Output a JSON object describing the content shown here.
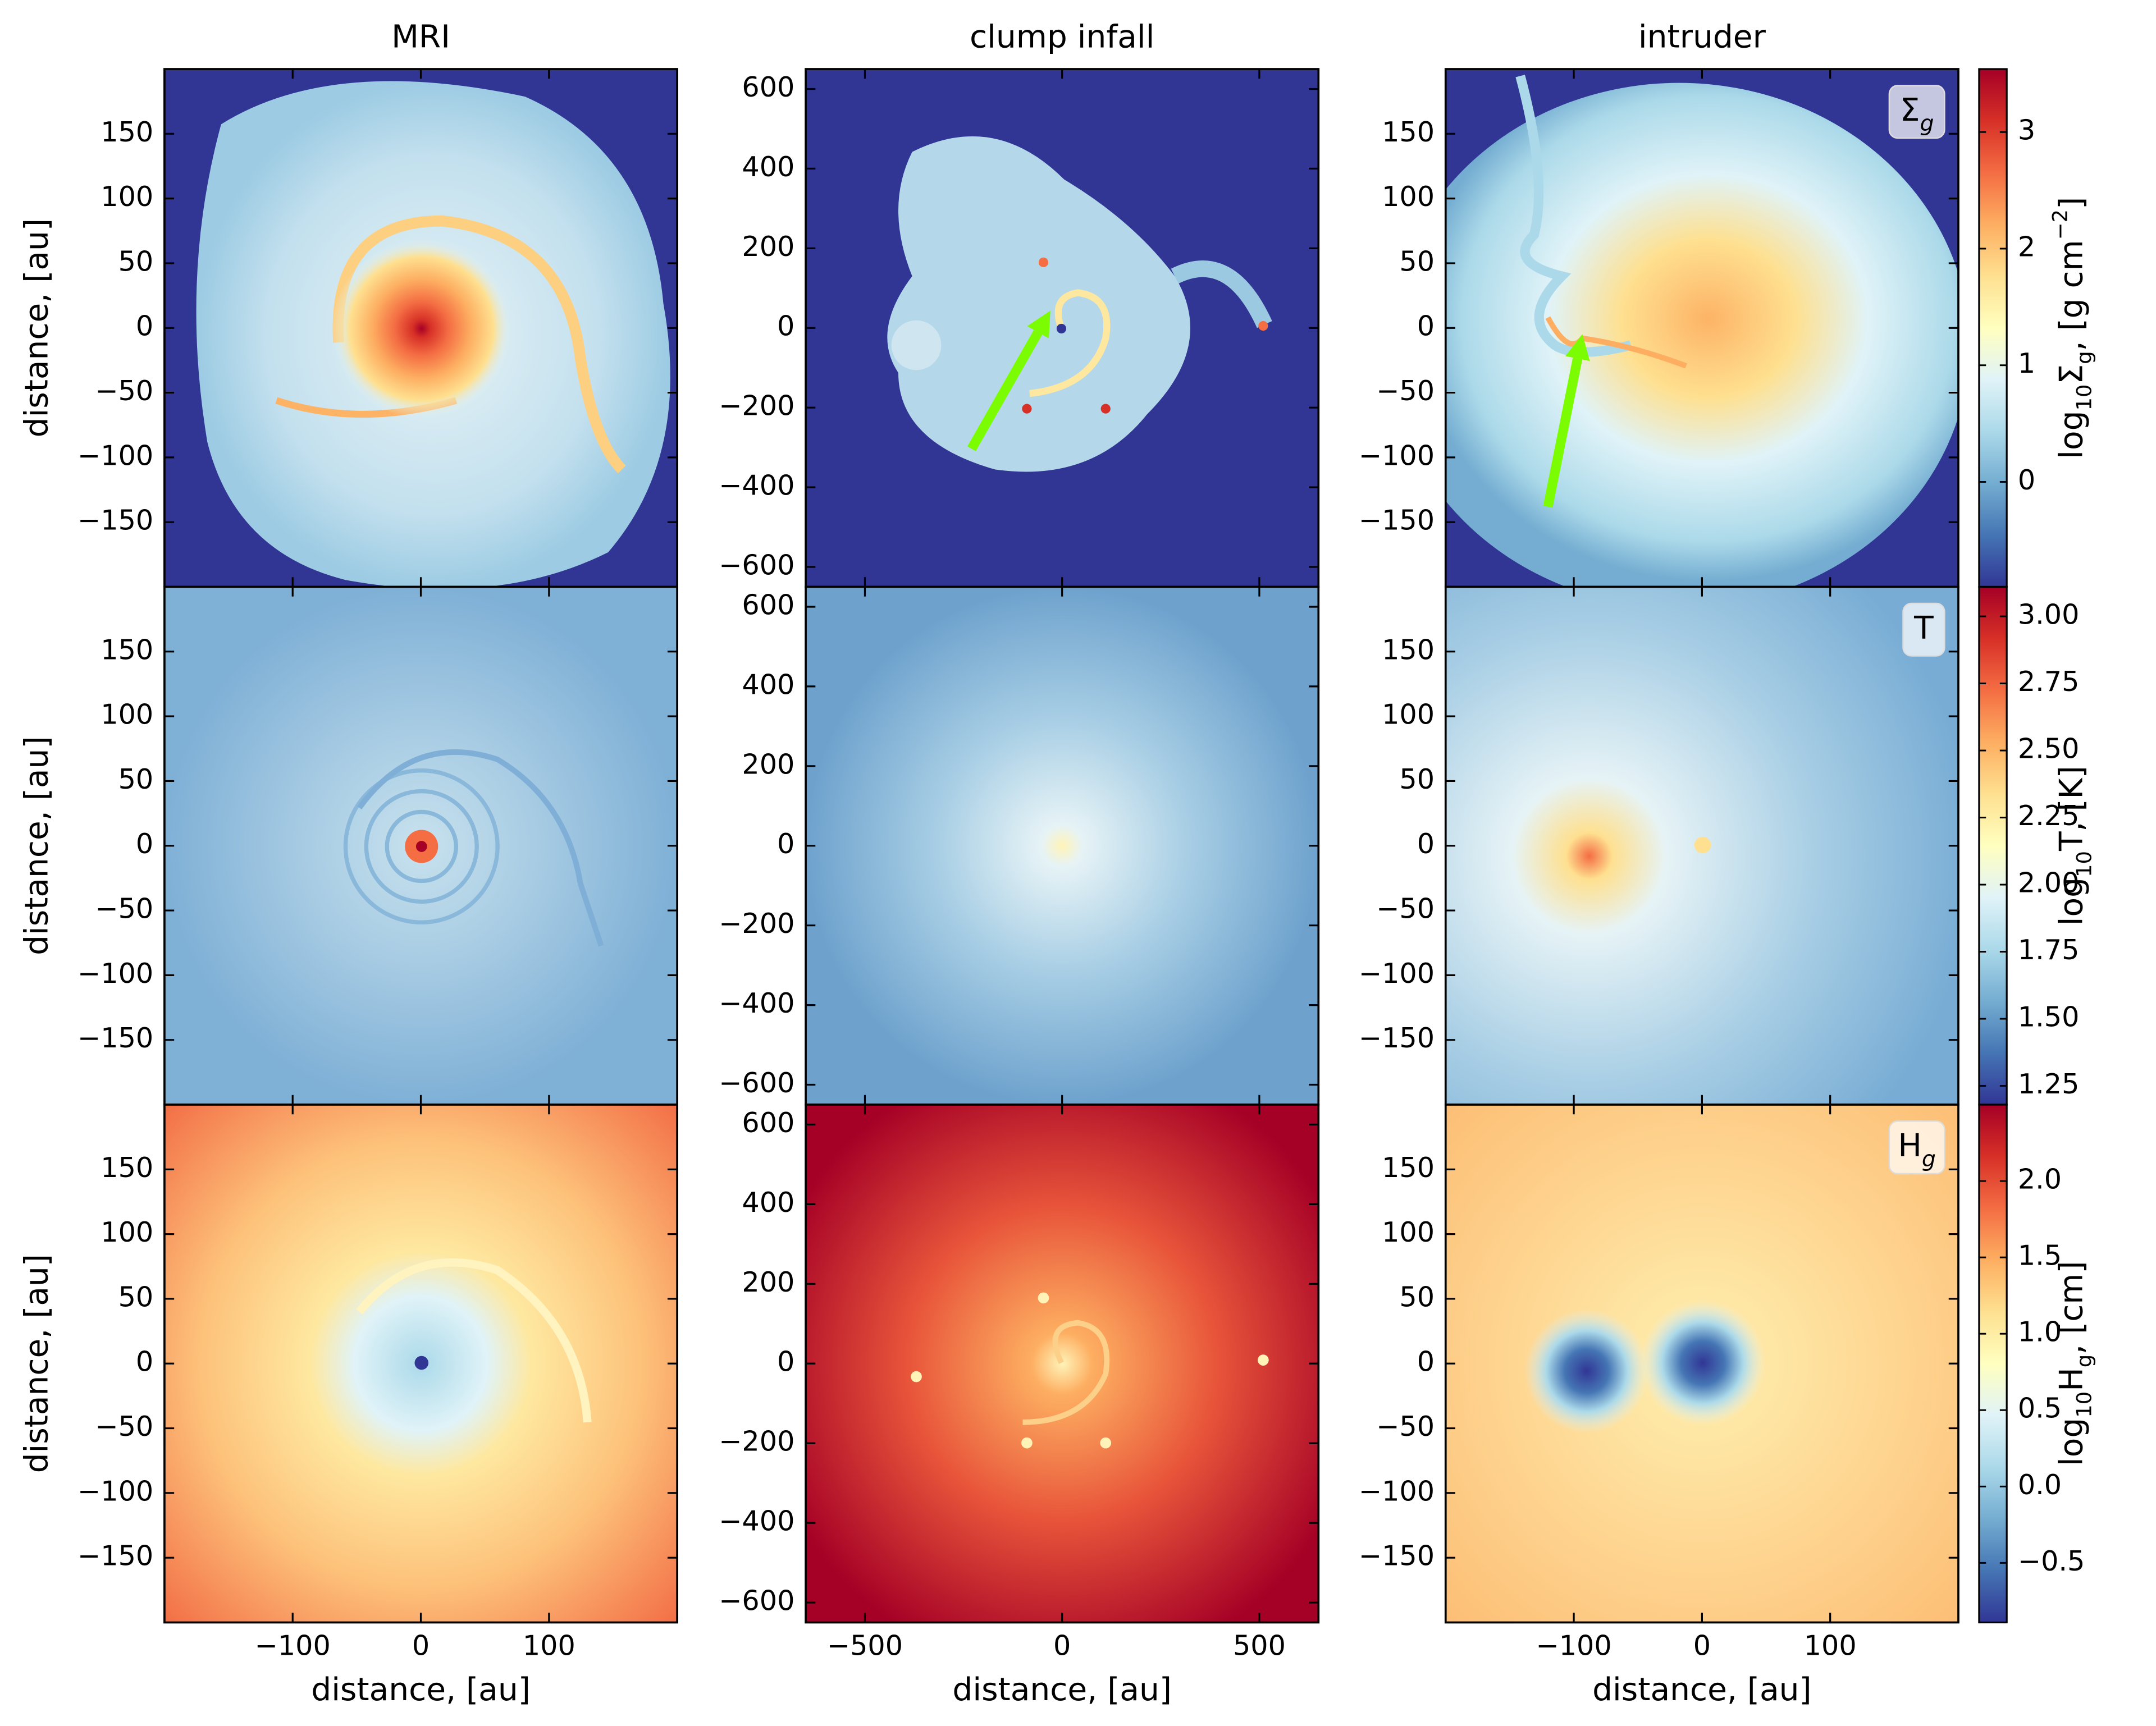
{
  "chart_data": [
    {
      "type": "heatmap",
      "title": "MRI",
      "ylabel": "distance, [au]",
      "xlim": [
        -200,
        200
      ],
      "ylim": [
        -200,
        200
      ],
      "xticks": [
        -100,
        0,
        100
      ],
      "yticks": [
        {
          "value": -150,
          "label": "−150"
        },
        {
          "value": -100,
          "label": "−100"
        },
        {
          "value": -50,
          "label": "−50"
        },
        0,
        50,
        100,
        150
      ]
    },
    {
      "type": "heatmap",
      "title": "clump infall",
      "xlim": [
        -650,
        650
      ],
      "ylim": [
        -650,
        650
      ],
      "xticks": [
        -500,
        0,
        500
      ],
      "yticks": [
        {
          "value": -600,
          "label": "−600"
        },
        {
          "value": -400,
          "label": "−400"
        },
        {
          "value": -200,
          "label": "−200"
        },
        0,
        200,
        400,
        600
      ]
    },
    {
      "type": "heatmap",
      "title": "intruder",
      "annotation": {
        "base": "Σ",
        "sub": "g"
      },
      "xlim": [
        -200,
        200
      ],
      "ylim": [
        -200,
        200
      ],
      "xticks": [
        -100,
        0,
        100
      ],
      "yticks": [
        {
          "value": -150,
          "label": "−150"
        },
        {
          "value": -100,
          "label": "−100"
        },
        {
          "value": -50,
          "label": "−50"
        },
        0,
        50,
        100,
        150
      ]
    },
    {
      "type": "heatmap",
      "ylabel": "distance, [au]",
      "xlim": [
        -200,
        200
      ],
      "ylim": [
        -200,
        200
      ],
      "xticks": [
        -100,
        0,
        100
      ],
      "yticks": [
        {
          "value": -150,
          "label": "−150"
        },
        {
          "value": -100,
          "label": "−100"
        },
        {
          "value": -50,
          "label": "−50"
        },
        0,
        50,
        100,
        150
      ]
    },
    {
      "type": "heatmap",
      "xlim": [
        -650,
        650
      ],
      "ylim": [
        -650,
        650
      ],
      "xticks": [
        -500,
        0,
        500
      ],
      "yticks": [
        {
          "value": -600,
          "label": "−600"
        },
        {
          "value": -400,
          "label": "−400"
        },
        {
          "value": -200,
          "label": "−200"
        },
        0,
        200,
        400,
        600
      ]
    },
    {
      "type": "heatmap",
      "annotation": {
        "base": "T"
      },
      "xlim": [
        -200,
        200
      ],
      "ylim": [
        -200,
        200
      ],
      "xticks": [
        -100,
        0,
        100
      ],
      "yticks": [
        {
          "value": -150,
          "label": "−150"
        },
        {
          "value": -100,
          "label": "−100"
        },
        {
          "value": -50,
          "label": "−50"
        },
        0,
        50,
        100,
        150
      ]
    },
    {
      "type": "heatmap",
      "ylabel": "distance, [au]",
      "xlabel": "distance, [au]",
      "xlim": [
        -200,
        200
      ],
      "ylim": [
        -200,
        200
      ],
      "xticks": [
        {
          "value": -100,
          "label": "−100"
        },
        0,
        100
      ],
      "yticks": [
        {
          "value": -150,
          "label": "−150"
        },
        {
          "value": -100,
          "label": "−100"
        },
        {
          "value": -50,
          "label": "−50"
        },
        0,
        50,
        100,
        150
      ]
    },
    {
      "type": "heatmap",
      "xlabel": "distance, [au]",
      "xlim": [
        -650,
        650
      ],
      "ylim": [
        -650,
        650
      ],
      "xticks": [
        {
          "value": -500,
          "label": "−500"
        },
        0,
        500
      ],
      "yticks": [
        {
          "value": -600,
          "label": "−600"
        },
        {
          "value": -400,
          "label": "−400"
        },
        {
          "value": -200,
          "label": "−200"
        },
        0,
        200,
        400,
        600
      ]
    },
    {
      "type": "heatmap",
      "xlabel": "distance, [au]",
      "annotation": {
        "base": "H",
        "sub": "g"
      },
      "xlim": [
        -200,
        200
      ],
      "ylim": [
        -200,
        200
      ],
      "xticks": [
        {
          "value": -100,
          "label": "−100"
        },
        0,
        100
      ],
      "yticks": [
        {
          "value": -150,
          "label": "−150"
        },
        {
          "value": -100,
          "label": "−100"
        },
        {
          "value": -50,
          "label": "−50"
        },
        0,
        50,
        100,
        150
      ]
    },
    {
      "type": "colorbar",
      "label": [
        {
          "text": "log"
        },
        {
          "text": "10",
          "sub": true
        },
        {
          "text": "Σ"
        },
        {
          "text": "g",
          "sub": true
        },
        {
          "text": ", [g cm"
        },
        {
          "text": "−2",
          "sup": true
        },
        {
          "text": "]"
        }
      ],
      "ylim": [
        -0.9,
        3.54
      ],
      "yticks": [
        0,
        1,
        2,
        3
      ],
      "colormap": [
        "#313695",
        "#4575b4",
        "#74add1",
        "#abd9e9",
        "#e0f3f8",
        "#ffffbf",
        "#fee090",
        "#fdae61",
        "#f46d43",
        "#d73027",
        "#a50026"
      ]
    },
    {
      "type": "colorbar",
      "label": [
        {
          "text": "log"
        },
        {
          "text": "10",
          "sub": true
        },
        {
          "text": "T, [K]"
        }
      ],
      "ylim": [
        1.18,
        3.11
      ],
      "yticks": [
        1.25,
        {
          "value": 1.5,
          "label": "1.50"
        },
        1.75,
        {
          "value": 2,
          "label": "2.00"
        },
        2.25,
        {
          "value": 2.5,
          "label": "2.50"
        },
        2.75,
        {
          "value": 3,
          "label": "3.00"
        }
      ],
      "colormap": [
        "#313695",
        "#4575b4",
        "#74add1",
        "#abd9e9",
        "#e0f3f8",
        "#ffffbf",
        "#fee090",
        "#fdae61",
        "#f46d43",
        "#d73027",
        "#a50026"
      ]
    },
    {
      "type": "colorbar",
      "label": [
        {
          "text": "log"
        },
        {
          "text": "10",
          "sub": true
        },
        {
          "text": "H"
        },
        {
          "text": "g",
          "sub": true
        },
        {
          "text": ", [cm]"
        }
      ],
      "ylim": [
        -0.89,
        2.5
      ],
      "yticks": [
        {
          "value": -0.5,
          "label": "−0.5"
        },
        {
          "value": 0,
          "label": "0.0"
        },
        0.5,
        {
          "value": 1,
          "label": "1.0"
        },
        1.5,
        {
          "value": 2,
          "label": "2.0"
        }
      ],
      "colormap": [
        "#313695",
        "#4575b4",
        "#74add1",
        "#abd9e9",
        "#e0f3f8",
        "#ffffbf",
        "#fee090",
        "#fdae61",
        "#f46d43",
        "#d73027",
        "#a50026"
      ]
    }
  ]
}
